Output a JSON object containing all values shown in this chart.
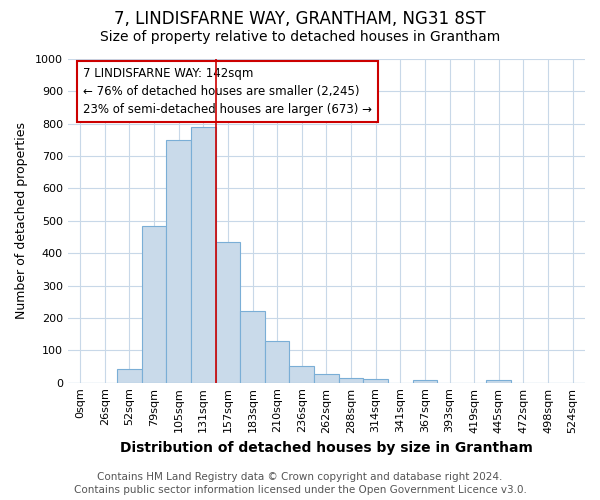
{
  "title": "7, LINDISFARNE WAY, GRANTHAM, NG31 8ST",
  "subtitle": "Size of property relative to detached houses in Grantham",
  "xlabel": "Distribution of detached houses by size in Grantham",
  "ylabel": "Number of detached properties",
  "bar_labels": [
    "0sqm",
    "26sqm",
    "52sqm",
    "79sqm",
    "105sqm",
    "131sqm",
    "157sqm",
    "183sqm",
    "210sqm",
    "236sqm",
    "262sqm",
    "288sqm",
    "314sqm",
    "341sqm",
    "367sqm",
    "393sqm",
    "419sqm",
    "445sqm",
    "472sqm",
    "498sqm",
    "524sqm"
  ],
  "bar_values": [
    0,
    0,
    43,
    485,
    750,
    790,
    435,
    220,
    128,
    50,
    28,
    15,
    10,
    0,
    8,
    0,
    0,
    8,
    0,
    0,
    0
  ],
  "bar_color": "#c9daea",
  "bar_edge_color": "#7aaed6",
  "ylim": [
    0,
    1000
  ],
  "yticks": [
    0,
    100,
    200,
    300,
    400,
    500,
    600,
    700,
    800,
    900,
    1000
  ],
  "annotation_text": "7 LINDISFARNE WAY: 142sqm\n← 76% of detached houses are smaller (2,245)\n23% of semi-detached houses are larger (673) →",
  "annotation_box_color": "#ffffff",
  "annotation_box_edge_color": "#cc0000",
  "vline_color": "#cc0000",
  "property_bin_idx": 5,
  "footnote": "Contains HM Land Registry data © Crown copyright and database right 2024.\nContains public sector information licensed under the Open Government Licence v3.0.",
  "background_color": "#ffffff",
  "plot_background_color": "#ffffff",
  "grid_color": "#c8d8e8",
  "title_fontsize": 12,
  "subtitle_fontsize": 10,
  "xlabel_fontsize": 10,
  "ylabel_fontsize": 9,
  "tick_fontsize": 8,
  "annotation_fontsize": 8.5,
  "footnote_fontsize": 7.5
}
